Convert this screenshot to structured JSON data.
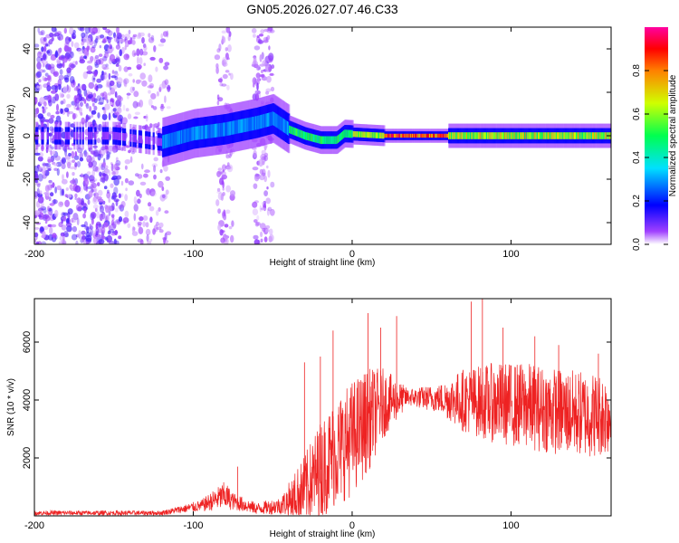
{
  "page_title": "GN05.2026.027.07.46.C33",
  "chart_data": [
    {
      "type": "heatmap",
      "title": "GN05.2026.027.07.46.C33",
      "xlabel": "Height of straight line (km)",
      "ylabel": "Frequency (Hz)",
      "xlim": [
        -200,
        163
      ],
      "ylim": [
        -50,
        50
      ],
      "x_ticks": [
        -200,
        -100,
        0,
        100
      ],
      "y_ticks": [
        -40,
        -20,
        0,
        20,
        40
      ],
      "colorbar": {
        "label": "Normalized spectral amplitude",
        "range": [
          0,
          1
        ],
        "ticks": [
          0.0,
          0.2,
          0.4,
          0.6,
          0.8
        ],
        "tick_labels": [
          "0.0",
          "0.2",
          "0.4",
          "0.6",
          "0.8"
        ]
      },
      "ridge": [
        {
          "x": -200,
          "freq": 0
        },
        {
          "x": -150,
          "freq": 0
        },
        {
          "x": -120,
          "freq": -3
        },
        {
          "x": -100,
          "freq": 1
        },
        {
          "x": -80,
          "freq": 3
        },
        {
          "x": -60,
          "freq": 6
        },
        {
          "x": -50,
          "freq": 8
        },
        {
          "x": -40,
          "freq": 3
        },
        {
          "x": -30,
          "freq": 0
        },
        {
          "x": -20,
          "freq": -2
        },
        {
          "x": -10,
          "freq": -2
        },
        {
          "x": -5,
          "freq": 1
        },
        {
          "x": 20,
          "freq": 0
        },
        {
          "x": 60,
          "freq": 0
        },
        {
          "x": 163,
          "freq": 0
        }
      ]
    },
    {
      "type": "line",
      "xlabel": "Height of straight line (km)",
      "ylabel": "SNR (10 * v/v)",
      "xlim": [
        -200,
        163
      ],
      "ylim": [
        0,
        7500
      ],
      "x_ticks": [
        -200,
        -100,
        0,
        100
      ],
      "y_ticks": [
        2000,
        4000,
        6000
      ],
      "color": "#ee2222",
      "envelope": [
        {
          "x": -200,
          "mean": 100,
          "amp": 80
        },
        {
          "x": -120,
          "mean": 100,
          "amp": 80
        },
        {
          "x": -110,
          "mean": 200,
          "amp": 120
        },
        {
          "x": -95,
          "mean": 350,
          "amp": 200
        },
        {
          "x": -80,
          "mean": 700,
          "amp": 500
        },
        {
          "x": -75,
          "mean": 500,
          "amp": 300
        },
        {
          "x": -60,
          "mean": 250,
          "amp": 200
        },
        {
          "x": -45,
          "mean": 350,
          "amp": 300
        },
        {
          "x": -30,
          "mean": 900,
          "amp": 1200
        },
        {
          "x": -20,
          "mean": 1600,
          "amp": 1700
        },
        {
          "x": -10,
          "mean": 2200,
          "amp": 1900
        },
        {
          "x": 0,
          "mean": 2700,
          "amp": 2000
        },
        {
          "x": 10,
          "mean": 3300,
          "amp": 1800
        },
        {
          "x": 20,
          "mean": 3900,
          "amp": 1200
        },
        {
          "x": 35,
          "mean": 4100,
          "amp": 300
        },
        {
          "x": 55,
          "mean": 4050,
          "amp": 500
        },
        {
          "x": 70,
          "mean": 4000,
          "amp": 1100
        },
        {
          "x": 90,
          "mean": 3900,
          "amp": 1400
        },
        {
          "x": 110,
          "mean": 3800,
          "amp": 1500
        },
        {
          "x": 130,
          "mean": 3600,
          "amp": 1500
        },
        {
          "x": 150,
          "mean": 3500,
          "amp": 1500
        },
        {
          "x": 163,
          "mean": 3500,
          "amp": 1400
        }
      ],
      "spikes": [
        {
          "x": -72,
          "y": 1700
        },
        {
          "x": -30,
          "y": 5300
        },
        {
          "x": -20,
          "y": 5500
        },
        {
          "x": -12,
          "y": 6400
        },
        {
          "x": 10,
          "y": 7000
        },
        {
          "x": 18,
          "y": 6500
        },
        {
          "x": 28,
          "y": 6900
        },
        {
          "x": 75,
          "y": 7400
        },
        {
          "x": 82,
          "y": 7500
        },
        {
          "x": 95,
          "y": 6500
        },
        {
          "x": 115,
          "y": 6200
        },
        {
          "x": 130,
          "y": 5900
        },
        {
          "x": 155,
          "y": 5600
        }
      ]
    }
  ]
}
